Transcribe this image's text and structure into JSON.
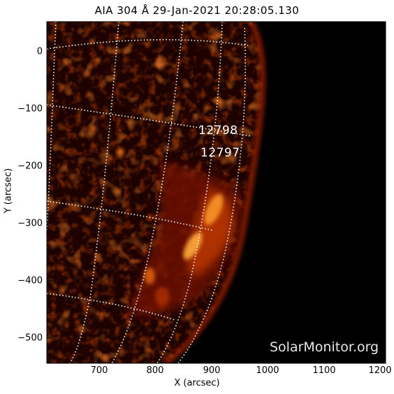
{
  "title": "AIA 304 Å 29-Jan-2021 20:28:05.130",
  "xlabel": "X (arcsec)",
  "ylabel": "Y (arcsec)",
  "x_ticks": [
    "700",
    "800",
    "900",
    "1000",
    "1100",
    "1200"
  ],
  "y_ticks": [
    "0",
    "−100",
    "−200",
    "−300",
    "−400",
    "−500"
  ],
  "regions": [
    "12798",
    "12797"
  ],
  "credit": "SolarMonitor.org",
  "colors": {
    "disk_dark": "#2a0300",
    "active_bright": "#ff9a2a",
    "sky": "#000000",
    "grid": "#ffffff"
  },
  "grid_style": "white dotted heliographic grid"
}
